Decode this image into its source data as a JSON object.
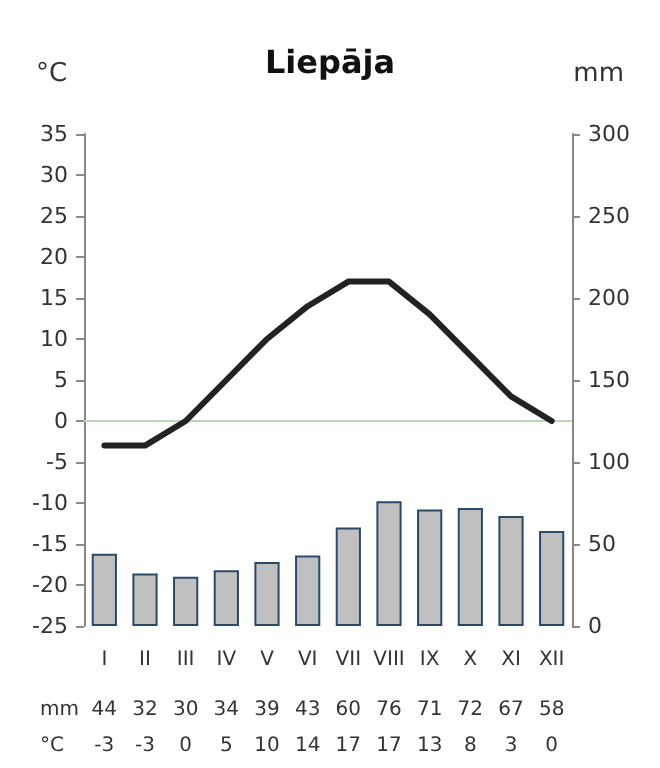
{
  "chart_data": {
    "type": "bar",
    "title": "Liepāja",
    "ylabel": "°C",
    "y2label": "mm",
    "categories": [
      "I",
      "II",
      "III",
      "IV",
      "V",
      "VI",
      "VII",
      "VIII",
      "IX",
      "X",
      "XI",
      "XII"
    ],
    "series": [
      {
        "axis": "y2",
        "color": "#c0c0c0",
        "values": [
          44,
          32,
          30,
          34,
          39,
          43,
          60,
          76,
          71,
          72,
          67,
          58
        ]
      },
      {
        "type": "line",
        "color": "#222222",
        "values": [
          -3,
          -3,
          0,
          5,
          10,
          14,
          17,
          17,
          13,
          8,
          3,
          0
        ]
      }
    ],
    "ylim": [
      -25,
      35
    ],
    "yticks": [
      -25,
      -20,
      -15,
      -10,
      -5,
      0,
      5,
      10,
      15,
      20,
      25,
      30,
      35
    ],
    "y2lim": [
      0,
      300
    ],
    "y2ticks": [
      0,
      50,
      100,
      150,
      200,
      250,
      300
    ],
    "ref_lines": [
      {
        "axis": "y",
        "value": 0,
        "color": "#b8d8b8"
      }
    ],
    "data_labels": true,
    "grid": false,
    "marker": "none",
    "line_style": "solid"
  }
}
